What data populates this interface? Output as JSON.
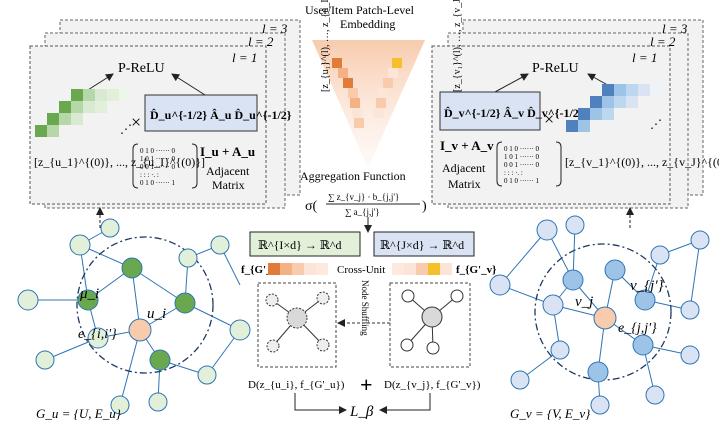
{
  "top_center": {
    "title_line1": "User/Item  Patch-Level",
    "title_line2": "Embedding",
    "agg_title": "Aggregation Function",
    "agg_formula_prefix": "σ(",
    "agg_numerator": "∑ z_{v_j} · b_{j,j'}",
    "agg_denominator": "∑ a_{j,j'}",
    "agg_formula_suffix": ")",
    "map_user": "ℝ^{I×d} → ℝ^d",
    "map_item": "ℝ^{J×d} → ℝ^d",
    "cross_unit": "Cross-Unit",
    "f_user": "f_{G'_u}",
    "f_item": "f_{G'_v}",
    "node_shuffling": "Node Shuffling",
    "disc_user": "D(z_{u_i}, f_{G'_u})",
    "disc_item": "D(z_{v_j}, f_{G'_v})",
    "plus": "+",
    "loss": "L_β"
  },
  "left_panel": {
    "layer_labels": [
      "l = 3",
      "l = 2",
      "l = 1"
    ],
    "activation": "P-ReLU",
    "norm_matrix": "D̂_u^{-1/2} Â_u D̂_u^{-1/2}",
    "times": "×",
    "ia_label": "I_u + A_u",
    "adjacent_label_1": "Adjacent",
    "adjacent_label_2": "Matrix",
    "embedding_list": "[z_{u_1}^{(0)}, ..., z_{u_I}^{(0)}]",
    "matrix_rows": [
      "0 1 0 ······ 0",
      "1 0 1 ······ 0",
      "0 0 1 ······ 0",
      ": : : ·. :",
      "0 1 0 ······ 1"
    ]
  },
  "right_panel": {
    "layer_labels": [
      "l = 3",
      "l = 2",
      "l = 1"
    ],
    "activation": "P-ReLU",
    "norm_matrix": "D̂_v^{-1/2} Â_v D̂_v^{-1/2}",
    "times": "×",
    "ia_label": "I_v + A_v",
    "adjacent_label_1": "Adjacent",
    "adjacent_label_2": "Matrix",
    "embedding_list": "[z_{v_1}^{(0)}, ..., z_{v_J}^{(0)}]",
    "matrix_rows": [
      "0 1 0 ······ 0",
      "1 0 1 ······ 0",
      "0 0 1 ······ 0",
      ": : : ·. :",
      "0 1 0 ······ 1"
    ]
  },
  "left_graph": {
    "mu_label": "μ_i",
    "u_label": "u_i",
    "e_label": "e_{i,i'}",
    "caption": "G_u = {U, E_u}"
  },
  "right_graph": {
    "v_label": "v_j",
    "vp_label": "v_{j'}",
    "e_label": "e_{j,j'}",
    "caption": "G_v = {V, E_v}"
  },
  "colors": {
    "user_green": "#6aa84f",
    "user_green_light": "#d9ead3",
    "user_node_light": "#e2f0d9",
    "item_blue": "#4f81bd",
    "item_blue_light": "#dae3f3",
    "center_orange": "#f4b183",
    "patch_orange": "#e07b39",
    "patch_yellow": "#f6c02a",
    "box_blue_fill": "#dae3f3",
    "box_green_fill": "#e2f0d9",
    "edge_blue": "#2e75b6"
  }
}
